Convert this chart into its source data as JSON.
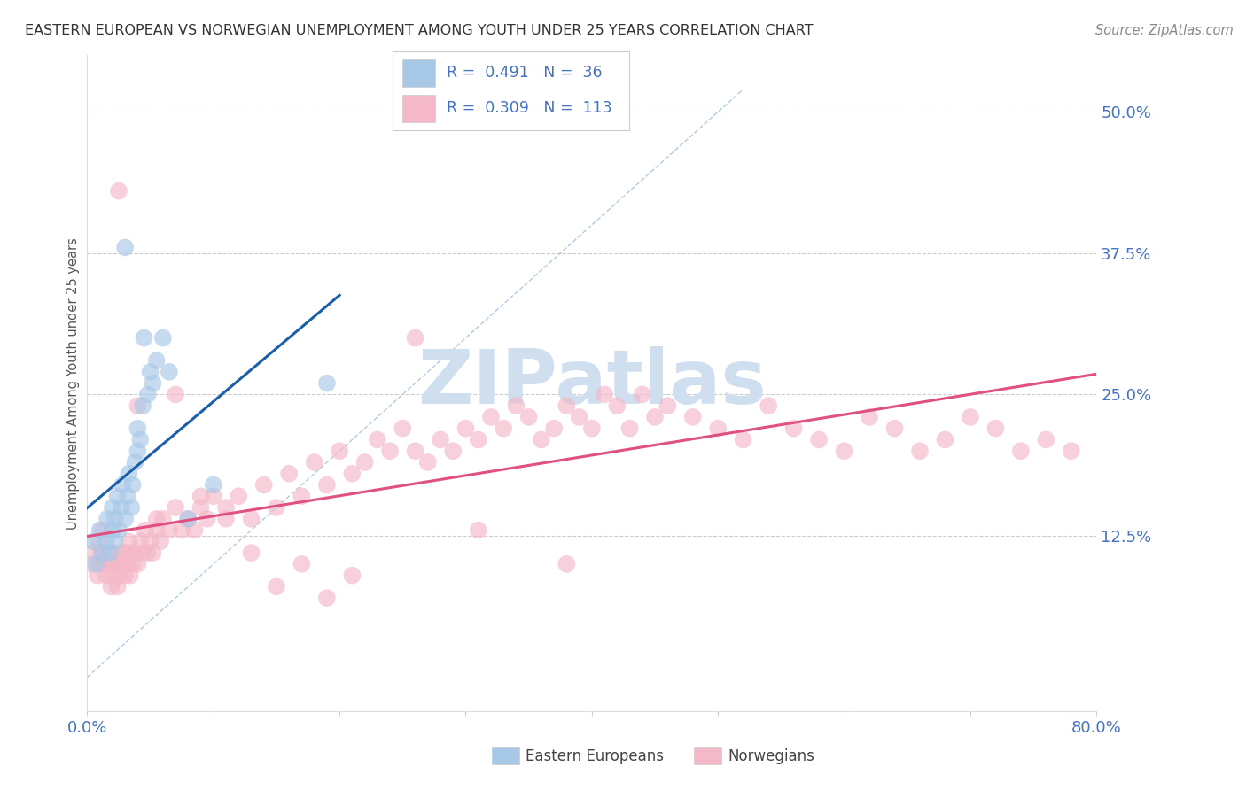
{
  "title": "EASTERN EUROPEAN VS NORWEGIAN UNEMPLOYMENT AMONG YOUTH UNDER 25 YEARS CORRELATION CHART",
  "source": "Source: ZipAtlas.com",
  "ylabel": "Unemployment Among Youth under 25 years",
  "xlim": [
    0.0,
    0.8
  ],
  "ylim": [
    -0.03,
    0.55
  ],
  "yticks": [
    0.125,
    0.25,
    0.375,
    0.5
  ],
  "ytick_labels": [
    "12.5%",
    "25.0%",
    "37.5%",
    "50.0%"
  ],
  "xtick_labels": [
    "0.0%",
    "",
    "",
    "",
    "",
    "",
    "",
    "",
    "80.0%"
  ],
  "legend_text_1": "R =  0.491   N =  36",
  "legend_text_2": "R =  0.309   N =  113",
  "color_blue_fill": "#a8c8e8",
  "color_pink_fill": "#f4b8c8",
  "color_trend_blue": "#1a5fa8",
  "color_trend_pink": "#e05080",
  "color_ref_line": "#aac4e0",
  "color_grid": "#cccccc",
  "color_title": "#333333",
  "color_axis_labels": "#4472c4",
  "watermark_text": "ZIPatlas",
  "watermark_color": "#d0dff0",
  "eastern_europeans_x": [
    0.005,
    0.007,
    0.01,
    0.012,
    0.015,
    0.016,
    0.018,
    0.02,
    0.02,
    0.022,
    0.022,
    0.024,
    0.025,
    0.027,
    0.028,
    0.03,
    0.03,
    0.032,
    0.033,
    0.035,
    0.036,
    0.038,
    0.04,
    0.04,
    0.042,
    0.044,
    0.045,
    0.048,
    0.05,
    0.052,
    0.055,
    0.06,
    0.065,
    0.08,
    0.1,
    0.19
  ],
  "eastern_europeans_y": [
    0.12,
    0.1,
    0.13,
    0.11,
    0.12,
    0.14,
    0.11,
    0.13,
    0.15,
    0.12,
    0.14,
    0.16,
    0.13,
    0.15,
    0.17,
    0.14,
    0.38,
    0.16,
    0.18,
    0.15,
    0.17,
    0.19,
    0.2,
    0.22,
    0.21,
    0.24,
    0.3,
    0.25,
    0.27,
    0.26,
    0.28,
    0.3,
    0.27,
    0.14,
    0.17,
    0.26
  ],
  "norwegians_x": [
    0.003,
    0.005,
    0.008,
    0.009,
    0.01,
    0.011,
    0.012,
    0.013,
    0.015,
    0.016,
    0.018,
    0.019,
    0.02,
    0.021,
    0.022,
    0.023,
    0.024,
    0.025,
    0.026,
    0.028,
    0.029,
    0.03,
    0.031,
    0.032,
    0.033,
    0.034,
    0.035,
    0.036,
    0.038,
    0.04,
    0.042,
    0.044,
    0.046,
    0.048,
    0.05,
    0.052,
    0.055,
    0.058,
    0.06,
    0.065,
    0.07,
    0.075,
    0.08,
    0.085,
    0.09,
    0.095,
    0.1,
    0.11,
    0.12,
    0.13,
    0.14,
    0.15,
    0.16,
    0.17,
    0.18,
    0.19,
    0.2,
    0.21,
    0.22,
    0.23,
    0.24,
    0.25,
    0.26,
    0.27,
    0.28,
    0.29,
    0.3,
    0.31,
    0.32,
    0.33,
    0.34,
    0.35,
    0.36,
    0.37,
    0.38,
    0.39,
    0.4,
    0.41,
    0.42,
    0.43,
    0.44,
    0.45,
    0.46,
    0.48,
    0.5,
    0.52,
    0.54,
    0.56,
    0.58,
    0.6,
    0.62,
    0.64,
    0.66,
    0.68,
    0.7,
    0.72,
    0.74,
    0.76,
    0.78,
    0.025,
    0.04,
    0.055,
    0.07,
    0.09,
    0.11,
    0.13,
    0.15,
    0.17,
    0.19,
    0.21,
    0.26,
    0.31,
    0.38
  ],
  "norwegians_y": [
    0.1,
    0.11,
    0.09,
    0.12,
    0.1,
    0.11,
    0.13,
    0.1,
    0.09,
    0.11,
    0.1,
    0.08,
    0.1,
    0.09,
    0.11,
    0.1,
    0.08,
    0.1,
    0.09,
    0.11,
    0.1,
    0.09,
    0.11,
    0.1,
    0.12,
    0.09,
    0.11,
    0.1,
    0.11,
    0.1,
    0.12,
    0.11,
    0.13,
    0.11,
    0.12,
    0.11,
    0.13,
    0.12,
    0.14,
    0.13,
    0.15,
    0.13,
    0.14,
    0.13,
    0.15,
    0.14,
    0.16,
    0.15,
    0.16,
    0.14,
    0.17,
    0.15,
    0.18,
    0.16,
    0.19,
    0.17,
    0.2,
    0.18,
    0.19,
    0.21,
    0.2,
    0.22,
    0.2,
    0.19,
    0.21,
    0.2,
    0.22,
    0.21,
    0.23,
    0.22,
    0.24,
    0.23,
    0.21,
    0.22,
    0.24,
    0.23,
    0.22,
    0.25,
    0.24,
    0.22,
    0.25,
    0.23,
    0.24,
    0.23,
    0.22,
    0.21,
    0.24,
    0.22,
    0.21,
    0.2,
    0.23,
    0.22,
    0.2,
    0.21,
    0.23,
    0.22,
    0.2,
    0.21,
    0.2,
    0.43,
    0.24,
    0.14,
    0.25,
    0.16,
    0.14,
    0.11,
    0.08,
    0.1,
    0.07,
    0.09,
    0.3,
    0.13,
    0.1
  ]
}
